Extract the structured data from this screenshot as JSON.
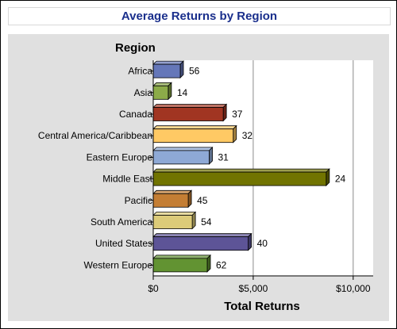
{
  "chart_data": {
    "type": "bar",
    "orientation": "horizontal",
    "title": "Average Returns by Region",
    "category_axis_label": "Region",
    "value_axis_label": "Total Returns",
    "categories": [
      "Africa",
      "Asia",
      "Canada",
      "Central America/Caribbean",
      "Eastern Europe",
      "Middle East",
      "Pacific",
      "South America",
      "United States",
      "Western Europe"
    ],
    "values": [
      1350,
      750,
      3500,
      4000,
      2800,
      8650,
      1750,
      1950,
      4750,
      2700
    ],
    "data_labels": [
      "56",
      "14",
      "37",
      "32",
      "31",
      "24",
      "45",
      "54",
      "40",
      "62"
    ],
    "colors": [
      "#6577b9",
      "#8cab49",
      "#a13522",
      "#ffc964",
      "#8ea9d6",
      "#717400",
      "#c47e34",
      "#dccb79",
      "#5d5497",
      "#629332"
    ],
    "xlim": [
      0,
      11000
    ],
    "xticks": [
      0,
      5000,
      10000
    ],
    "xtick_labels": [
      "$0",
      "$5,000",
      "$10,000"
    ],
    "grid": true
  }
}
